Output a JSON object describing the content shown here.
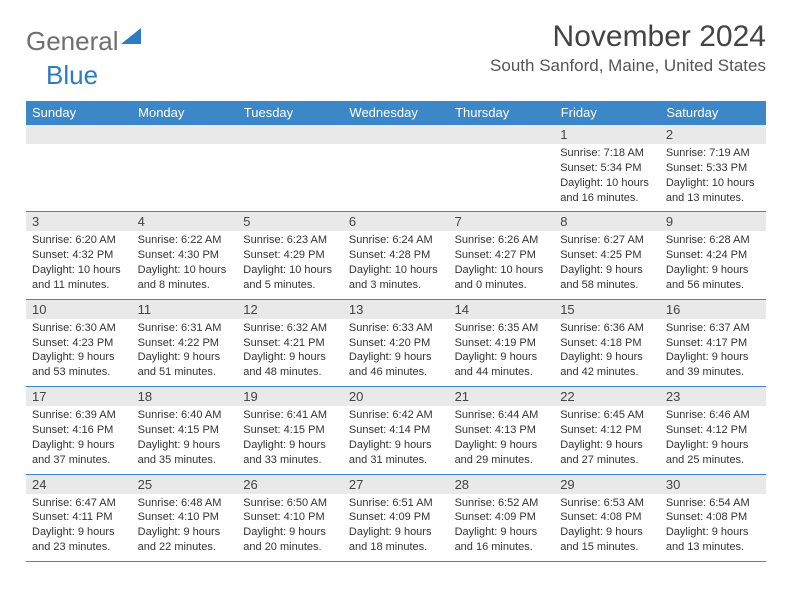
{
  "logo": {
    "part1": "General",
    "part2": "Blue"
  },
  "title": "November 2024",
  "location": "South Sanford, Maine, United States",
  "day_headers": [
    "Sunday",
    "Monday",
    "Tuesday",
    "Wednesday",
    "Thursday",
    "Friday",
    "Saturday"
  ],
  "colors": {
    "header_bg": "#3b87c8",
    "header_text": "#ffffff",
    "daynum_bg": "#e9e9e9",
    "border": "#3b87c8",
    "logo_gray": "#6f6f6f",
    "logo_blue": "#2d7bc0",
    "text": "#333333"
  },
  "weeks": [
    [
      {
        "n": "",
        "sr": "",
        "ss": "",
        "dl": ""
      },
      {
        "n": "",
        "sr": "",
        "ss": "",
        "dl": ""
      },
      {
        "n": "",
        "sr": "",
        "ss": "",
        "dl": ""
      },
      {
        "n": "",
        "sr": "",
        "ss": "",
        "dl": ""
      },
      {
        "n": "",
        "sr": "",
        "ss": "",
        "dl": ""
      },
      {
        "n": "1",
        "sr": "Sunrise: 7:18 AM",
        "ss": "Sunset: 5:34 PM",
        "dl": "Daylight: 10 hours and 16 minutes."
      },
      {
        "n": "2",
        "sr": "Sunrise: 7:19 AM",
        "ss": "Sunset: 5:33 PM",
        "dl": "Daylight: 10 hours and 13 minutes."
      }
    ],
    [
      {
        "n": "3",
        "sr": "Sunrise: 6:20 AM",
        "ss": "Sunset: 4:32 PM",
        "dl": "Daylight: 10 hours and 11 minutes."
      },
      {
        "n": "4",
        "sr": "Sunrise: 6:22 AM",
        "ss": "Sunset: 4:30 PM",
        "dl": "Daylight: 10 hours and 8 minutes."
      },
      {
        "n": "5",
        "sr": "Sunrise: 6:23 AM",
        "ss": "Sunset: 4:29 PM",
        "dl": "Daylight: 10 hours and 5 minutes."
      },
      {
        "n": "6",
        "sr": "Sunrise: 6:24 AM",
        "ss": "Sunset: 4:28 PM",
        "dl": "Daylight: 10 hours and 3 minutes."
      },
      {
        "n": "7",
        "sr": "Sunrise: 6:26 AM",
        "ss": "Sunset: 4:27 PM",
        "dl": "Daylight: 10 hours and 0 minutes."
      },
      {
        "n": "8",
        "sr": "Sunrise: 6:27 AM",
        "ss": "Sunset: 4:25 PM",
        "dl": "Daylight: 9 hours and 58 minutes."
      },
      {
        "n": "9",
        "sr": "Sunrise: 6:28 AM",
        "ss": "Sunset: 4:24 PM",
        "dl": "Daylight: 9 hours and 56 minutes."
      }
    ],
    [
      {
        "n": "10",
        "sr": "Sunrise: 6:30 AM",
        "ss": "Sunset: 4:23 PM",
        "dl": "Daylight: 9 hours and 53 minutes."
      },
      {
        "n": "11",
        "sr": "Sunrise: 6:31 AM",
        "ss": "Sunset: 4:22 PM",
        "dl": "Daylight: 9 hours and 51 minutes."
      },
      {
        "n": "12",
        "sr": "Sunrise: 6:32 AM",
        "ss": "Sunset: 4:21 PM",
        "dl": "Daylight: 9 hours and 48 minutes."
      },
      {
        "n": "13",
        "sr": "Sunrise: 6:33 AM",
        "ss": "Sunset: 4:20 PM",
        "dl": "Daylight: 9 hours and 46 minutes."
      },
      {
        "n": "14",
        "sr": "Sunrise: 6:35 AM",
        "ss": "Sunset: 4:19 PM",
        "dl": "Daylight: 9 hours and 44 minutes."
      },
      {
        "n": "15",
        "sr": "Sunrise: 6:36 AM",
        "ss": "Sunset: 4:18 PM",
        "dl": "Daylight: 9 hours and 42 minutes."
      },
      {
        "n": "16",
        "sr": "Sunrise: 6:37 AM",
        "ss": "Sunset: 4:17 PM",
        "dl": "Daylight: 9 hours and 39 minutes."
      }
    ],
    [
      {
        "n": "17",
        "sr": "Sunrise: 6:39 AM",
        "ss": "Sunset: 4:16 PM",
        "dl": "Daylight: 9 hours and 37 minutes."
      },
      {
        "n": "18",
        "sr": "Sunrise: 6:40 AM",
        "ss": "Sunset: 4:15 PM",
        "dl": "Daylight: 9 hours and 35 minutes."
      },
      {
        "n": "19",
        "sr": "Sunrise: 6:41 AM",
        "ss": "Sunset: 4:15 PM",
        "dl": "Daylight: 9 hours and 33 minutes."
      },
      {
        "n": "20",
        "sr": "Sunrise: 6:42 AM",
        "ss": "Sunset: 4:14 PM",
        "dl": "Daylight: 9 hours and 31 minutes."
      },
      {
        "n": "21",
        "sr": "Sunrise: 6:44 AM",
        "ss": "Sunset: 4:13 PM",
        "dl": "Daylight: 9 hours and 29 minutes."
      },
      {
        "n": "22",
        "sr": "Sunrise: 6:45 AM",
        "ss": "Sunset: 4:12 PM",
        "dl": "Daylight: 9 hours and 27 minutes."
      },
      {
        "n": "23",
        "sr": "Sunrise: 6:46 AM",
        "ss": "Sunset: 4:12 PM",
        "dl": "Daylight: 9 hours and 25 minutes."
      }
    ],
    [
      {
        "n": "24",
        "sr": "Sunrise: 6:47 AM",
        "ss": "Sunset: 4:11 PM",
        "dl": "Daylight: 9 hours and 23 minutes."
      },
      {
        "n": "25",
        "sr": "Sunrise: 6:48 AM",
        "ss": "Sunset: 4:10 PM",
        "dl": "Daylight: 9 hours and 22 minutes."
      },
      {
        "n": "26",
        "sr": "Sunrise: 6:50 AM",
        "ss": "Sunset: 4:10 PM",
        "dl": "Daylight: 9 hours and 20 minutes."
      },
      {
        "n": "27",
        "sr": "Sunrise: 6:51 AM",
        "ss": "Sunset: 4:09 PM",
        "dl": "Daylight: 9 hours and 18 minutes."
      },
      {
        "n": "28",
        "sr": "Sunrise: 6:52 AM",
        "ss": "Sunset: 4:09 PM",
        "dl": "Daylight: 9 hours and 16 minutes."
      },
      {
        "n": "29",
        "sr": "Sunrise: 6:53 AM",
        "ss": "Sunset: 4:08 PM",
        "dl": "Daylight: 9 hours and 15 minutes."
      },
      {
        "n": "30",
        "sr": "Sunrise: 6:54 AM",
        "ss": "Sunset: 4:08 PM",
        "dl": "Daylight: 9 hours and 13 minutes."
      }
    ]
  ]
}
